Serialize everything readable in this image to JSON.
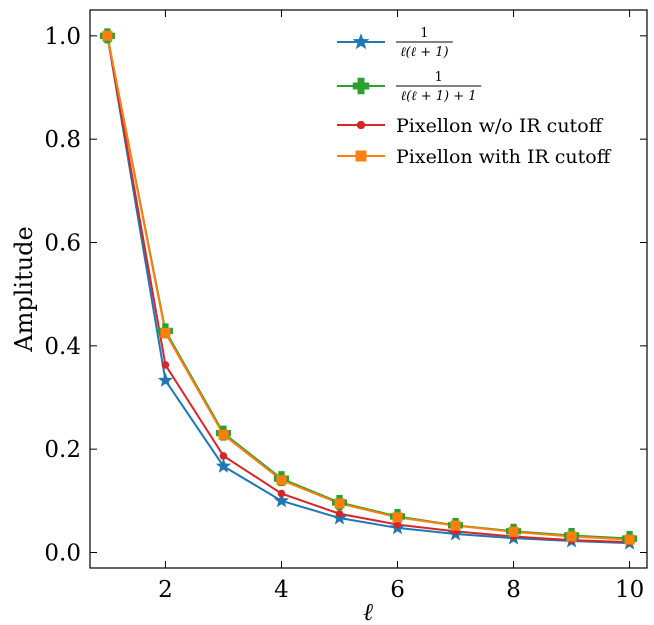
{
  "chart_data": {
    "type": "line",
    "xlabel": "ℓ",
    "ylabel": "Amplitude",
    "xlim": [
      0.7,
      10.3
    ],
    "ylim": [
      -0.03,
      1.05
    ],
    "x_ticks": [
      2,
      4,
      6,
      8,
      10
    ],
    "x_tick_labels": [
      "2",
      "4",
      "6",
      "8",
      "10"
    ],
    "y_ticks": [
      0.0,
      0.2,
      0.4,
      0.6,
      0.8,
      1.0
    ],
    "y_tick_labels": [
      "0.0",
      "0.2",
      "0.4",
      "0.6",
      "0.8",
      "1.0"
    ],
    "legend_position": "top-right",
    "x": [
      1,
      2,
      3,
      4,
      5,
      6,
      7,
      8,
      9,
      10
    ],
    "series": [
      {
        "name": "1 / ℓ(ℓ + 1)",
        "legend_numerator": "1",
        "legend_denominator": "ℓ(ℓ + 1)",
        "color": "#1f77b4",
        "marker": "star",
        "values": [
          1.0,
          0.333,
          0.167,
          0.1,
          0.0667,
          0.0476,
          0.0357,
          0.0278,
          0.0222,
          0.0182
        ]
      },
      {
        "name": "1 / ℓ(ℓ + 1) + 1",
        "legend_numerator": "1",
        "legend_denominator": "ℓ(ℓ + 1) + 1",
        "color": "#2ca02c",
        "marker": "plus",
        "values": [
          1.0,
          0.429,
          0.231,
          0.143,
          0.0968,
          0.0698,
          0.0526,
          0.0411,
          0.033,
          0.027
        ]
      },
      {
        "name": "Pixellon w/o IR cutoff",
        "color": "#d62728",
        "marker": "circle",
        "values": [
          1.0,
          0.363,
          0.187,
          0.114,
          0.075,
          0.054,
          0.041,
          0.031,
          0.024,
          0.02
        ]
      },
      {
        "name": "Pixellon with IR cutoff",
        "color": "#ff7f0e",
        "marker": "square",
        "values": [
          1.0,
          0.425,
          0.228,
          0.14,
          0.095,
          0.068,
          0.052,
          0.04,
          0.031,
          0.025
        ]
      }
    ]
  }
}
